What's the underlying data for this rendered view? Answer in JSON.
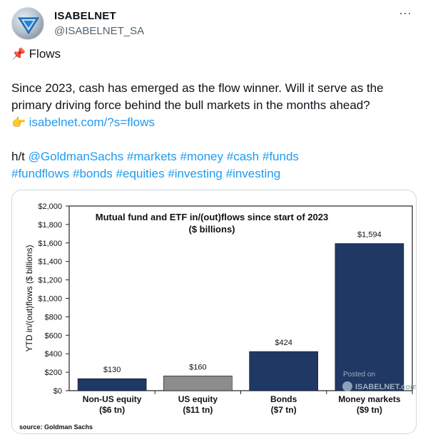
{
  "author": {
    "name": "ISABELNET",
    "handle": "@ISABELNET_SA"
  },
  "tweet": {
    "pin_emoji": "📌",
    "heading": "Flows",
    "line1": "Since 2023, cash has emerged as the flow winner. Will it serve as the",
    "line2": "primary driving force behind the bull markets in the months ahead?",
    "point_emoji": "👉",
    "link": "isabelnet.com/?s=flows",
    "ht_prefix": "h/t",
    "mention": "@GoldmanSachs",
    "hashtags_line1": [
      "#markets",
      "#money",
      "#cash",
      "#funds"
    ],
    "hashtags_line2": [
      "#fundflows",
      "#bonds",
      "#equities",
      "#investing",
      "#investing"
    ]
  },
  "chart_data": {
    "type": "bar",
    "title": "Mutual fund and ETF in/(out)flows since start of 2023",
    "subtitle": "($ billions)",
    "ylabel": "YTD in/(out)flows ($ billions)",
    "xlabel": "",
    "ylim": [
      0,
      2000
    ],
    "yticks": [
      0,
      200,
      400,
      600,
      800,
      1000,
      1200,
      1400,
      1600,
      1800,
      2000
    ],
    "ytick_labels": [
      "$0",
      "$200",
      "$400",
      "$600",
      "$800",
      "$1,000",
      "$1,200",
      "$1,400",
      "$1,600",
      "$1,800",
      "$2,000"
    ],
    "categories": [
      "Non-US equity",
      "US equity",
      "Bonds",
      "Money markets"
    ],
    "category_sublabels": [
      "($6 tn)",
      "($11 tn)",
      "($7 tn)",
      "($9 tn)"
    ],
    "values": [
      130,
      160,
      424,
      1594
    ],
    "value_labels": [
      "$130",
      "$160",
      "$424",
      "$1,594"
    ],
    "colors": [
      "#1f3864",
      "#8c8c8c",
      "#1f3864",
      "#1f3864"
    ],
    "source": "source: Goldman Sachs",
    "watermark_posted": "Posted on",
    "watermark_brand": "ISABELNET.com",
    "grid": false
  }
}
